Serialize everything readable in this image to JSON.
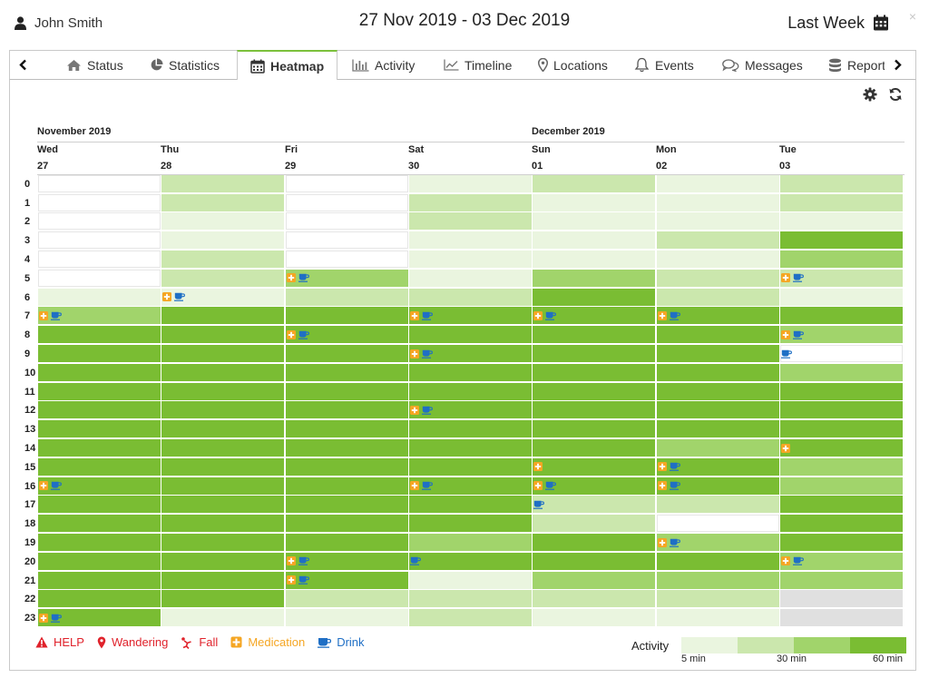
{
  "header": {
    "user_name": "John Smith",
    "date_range": "27 Nov 2019 - 03 Dec 2019",
    "period": "Last Week",
    "close_symbol": "×"
  },
  "tabs": [
    {
      "label": "Status",
      "icon": "home-icon"
    },
    {
      "label": "Statistics",
      "icon": "pie-chart-icon"
    },
    {
      "label": "Heatmap",
      "icon": "calendar-icon",
      "active": true
    },
    {
      "label": "Activity",
      "icon": "bar-chart-icon"
    },
    {
      "label": "Timeline",
      "icon": "line-chart-icon"
    },
    {
      "label": "Locations",
      "icon": "map-pin-icon"
    },
    {
      "label": "Events",
      "icon": "bell-icon"
    },
    {
      "label": "Messages",
      "icon": "chat-icon"
    },
    {
      "label": "Reports",
      "icon": "database-icon"
    }
  ],
  "heatmap": {
    "months": [
      "November 2019",
      "December 2019"
    ],
    "days": [
      {
        "name": "Wed",
        "date": "27"
      },
      {
        "name": "Thu",
        "date": "28"
      },
      {
        "name": "Fri",
        "date": "29"
      },
      {
        "name": "Sat",
        "date": "30"
      },
      {
        "name": "Sun",
        "date": "01"
      },
      {
        "name": "Mon",
        "date": "02"
      },
      {
        "name": "Tue",
        "date": "03"
      }
    ],
    "hours": [
      "0",
      "1",
      "2",
      "3",
      "4",
      "5",
      "6",
      "7",
      "8",
      "9",
      "10",
      "11",
      "12",
      "13",
      "14",
      "15",
      "16",
      "17",
      "18",
      "19",
      "20",
      "21",
      "22",
      "23"
    ],
    "levels_note": "0 = no activity, 1 = 5 min, 2 = 30 min, 3 = 45 min, 4 = 60 min, -1 = no data",
    "activity": [
      [
        0,
        2,
        0,
        1,
        2,
        1,
        2
      ],
      [
        0,
        2,
        0,
        2,
        1,
        1,
        2
      ],
      [
        0,
        1,
        0,
        2,
        1,
        1,
        1
      ],
      [
        0,
        1,
        0,
        1,
        1,
        2,
        4
      ],
      [
        0,
        2,
        0,
        1,
        1,
        1,
        3
      ],
      [
        0,
        2,
        3,
        1,
        3,
        2,
        2
      ],
      [
        1,
        1,
        2,
        2,
        4,
        2,
        1
      ],
      [
        3,
        4,
        4,
        4,
        4,
        4,
        4
      ],
      [
        4,
        4,
        4,
        4,
        4,
        4,
        3
      ],
      [
        4,
        4,
        4,
        4,
        4,
        4,
        0
      ],
      [
        4,
        4,
        4,
        4,
        4,
        4,
        3
      ],
      [
        4,
        4,
        4,
        4,
        4,
        4,
        4
      ],
      [
        4,
        4,
        4,
        4,
        4,
        4,
        4
      ],
      [
        4,
        4,
        4,
        4,
        4,
        4,
        4
      ],
      [
        4,
        4,
        4,
        4,
        4,
        3,
        4
      ],
      [
        4,
        4,
        4,
        4,
        4,
        4,
        3
      ],
      [
        4,
        4,
        4,
        4,
        4,
        4,
        3
      ],
      [
        4,
        4,
        4,
        4,
        2,
        2,
        4
      ],
      [
        4,
        4,
        4,
        4,
        2,
        0,
        4
      ],
      [
        4,
        4,
        4,
        3,
        4,
        3,
        4
      ],
      [
        4,
        4,
        4,
        4,
        4,
        4,
        3
      ],
      [
        4,
        4,
        4,
        1,
        3,
        3,
        3
      ],
      [
        4,
        4,
        2,
        2,
        2,
        2,
        -1
      ],
      [
        4,
        1,
        1,
        2,
        1,
        1,
        -1
      ]
    ],
    "events": [
      {
        "hour": 5,
        "day": 2,
        "types": [
          "medication",
          "drink"
        ]
      },
      {
        "hour": 5,
        "day": 6,
        "types": [
          "medication",
          "drink"
        ]
      },
      {
        "hour": 6,
        "day": 1,
        "types": [
          "medication",
          "drink"
        ]
      },
      {
        "hour": 7,
        "day": 0,
        "types": [
          "medication",
          "drink"
        ]
      },
      {
        "hour": 7,
        "day": 3,
        "types": [
          "medication",
          "drink"
        ]
      },
      {
        "hour": 7,
        "day": 4,
        "types": [
          "medication",
          "drink"
        ]
      },
      {
        "hour": 7,
        "day": 5,
        "types": [
          "medication",
          "drink"
        ]
      },
      {
        "hour": 8,
        "day": 2,
        "types": [
          "medication",
          "drink"
        ]
      },
      {
        "hour": 8,
        "day": 6,
        "types": [
          "medication",
          "drink"
        ]
      },
      {
        "hour": 9,
        "day": 3,
        "types": [
          "medication",
          "drink"
        ]
      },
      {
        "hour": 9,
        "day": 6,
        "types": [
          "drink"
        ]
      },
      {
        "hour": 12,
        "day": 3,
        "types": [
          "medication",
          "drink"
        ]
      },
      {
        "hour": 14,
        "day": 6,
        "types": [
          "medication"
        ]
      },
      {
        "hour": 15,
        "day": 4,
        "types": [
          "medication"
        ]
      },
      {
        "hour": 15,
        "day": 5,
        "types": [
          "medication",
          "drink"
        ]
      },
      {
        "hour": 16,
        "day": 0,
        "types": [
          "medication",
          "drink"
        ]
      },
      {
        "hour": 16,
        "day": 3,
        "types": [
          "medication",
          "drink"
        ]
      },
      {
        "hour": 16,
        "day": 4,
        "types": [
          "medication",
          "drink"
        ]
      },
      {
        "hour": 16,
        "day": 5,
        "types": [
          "medication",
          "drink"
        ]
      },
      {
        "hour": 17,
        "day": 4,
        "types": [
          "drink"
        ]
      },
      {
        "hour": 19,
        "day": 5,
        "types": [
          "medication",
          "drink"
        ]
      },
      {
        "hour": 20,
        "day": 2,
        "types": [
          "medication",
          "drink"
        ]
      },
      {
        "hour": 20,
        "day": 3,
        "types": [
          "drink"
        ]
      },
      {
        "hour": 20,
        "day": 6,
        "types": [
          "medication",
          "drink"
        ]
      },
      {
        "hour": 21,
        "day": 2,
        "types": [
          "medication",
          "drink"
        ]
      },
      {
        "hour": 23,
        "day": 0,
        "types": [
          "medication",
          "drink"
        ]
      }
    ]
  },
  "legend": [
    {
      "label": "HELP",
      "icon": "warning-triangle-icon",
      "color": "#e0222b"
    },
    {
      "label": "Wandering",
      "icon": "map-pin-icon",
      "color": "#e0222b"
    },
    {
      "label": "Fall",
      "icon": "fall-icon",
      "color": "#e0222b"
    },
    {
      "label": "Medication",
      "icon": "medication-icon",
      "color": "#f5a623"
    },
    {
      "label": "Drink",
      "icon": "cup-icon",
      "color": "#1f6fc5"
    }
  ],
  "activity_scale": {
    "label": "Activity",
    "ticks": [
      "5 min",
      "30 min",
      "60 min"
    ]
  },
  "colors": {
    "level0": "#ffffff",
    "level1": "#eaf5df",
    "level2": "#cbe7ad",
    "level3": "#a1d46b",
    "level4": "#7abd33",
    "nodata": "#e0e0e0",
    "accent": "#7cc13c"
  }
}
